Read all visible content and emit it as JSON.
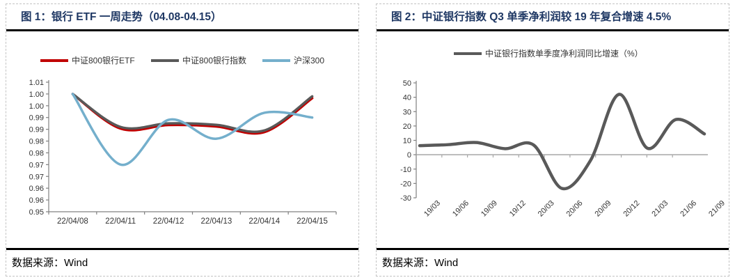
{
  "panels": [
    {
      "title": "图 1：银行 ETF 一周走势（04.08-04.15）",
      "source_label": "数据来源：",
      "source_value": "Wind"
    },
    {
      "title": "图 2：中证银行指数 Q3 单季净利润较 19 年复合增速 4.5%",
      "source_label": "数据来源：",
      "source_value": "Wind"
    }
  ],
  "colors": {
    "title_navy": "#1F3864",
    "etf_red": "#C00000",
    "index_gray": "#595959",
    "hs300_blue": "#74AFCC",
    "axis_gray": "#808080",
    "zero_line_gray": "#A6A6A6",
    "tick_text": "#333333",
    "panel_border": "#C3C3C3"
  },
  "chart_data": [
    {
      "type": "line",
      "title": "银行 ETF 一周走势（04.08-04.15）",
      "categories": [
        "22/04/08",
        "22/04/11",
        "22/04/12",
        "22/04/13",
        "22/04/14",
        "22/04/15"
      ],
      "series": [
        {
          "name": "中证800银行ETF",
          "color": "#C00000",
          "values": [
            1.0,
            0.9853,
            0.9868,
            0.9862,
            0.9838,
            0.9982
          ]
        },
        {
          "name": "中证800银行指数",
          "color": "#595959",
          "values": [
            1.0,
            0.986,
            0.9875,
            0.9869,
            0.9845,
            0.999
          ]
        },
        {
          "name": "沪深300",
          "color": "#74AFCC",
          "values": [
            1.0,
            0.97,
            0.989,
            0.981,
            0.992,
            0.99
          ]
        }
      ],
      "xlabel": "",
      "ylabel": "",
      "ylim": [
        0.95,
        1.005
      ],
      "y_tick_labels_top_to_bottom": [
        "1.01",
        "1.00",
        "1.00",
        "0.99",
        "0.99",
        "0.98",
        "0.98",
        "0.97",
        "0.97",
        "0.96",
        "0.96",
        "0.95"
      ],
      "grid": false,
      "legend_position": "top",
      "smooth": true
    },
    {
      "type": "line",
      "title": "中证银行指数 Q3 单季净利润较 19 年复合增速 4.5%",
      "categories": [
        "19/03",
        "19/06",
        "19/09",
        "19/12",
        "20/03",
        "20/06",
        "20/09",
        "20/12",
        "21/03",
        "21/06",
        "21/09"
      ],
      "series": [
        {
          "name": "中证银行指数单季度净利润同比增速（%）",
          "color": "#595959",
          "values": [
            6.3,
            7.0,
            8.5,
            4.2,
            6.8,
            -23.5,
            -4.0,
            42.0,
            4.5,
            24.5,
            14.5
          ]
        }
      ],
      "xlabel": "",
      "ylabel": "",
      "ylim": [
        -30,
        50
      ],
      "y_tick_labels_top_to_bottom": [
        "50",
        "40",
        "30",
        "20",
        "10",
        "0",
        "-10",
        "-20",
        "-30"
      ],
      "grid": false,
      "zero_line": true,
      "x_label_rotation": -45,
      "legend_position": "top",
      "smooth": true
    }
  ]
}
